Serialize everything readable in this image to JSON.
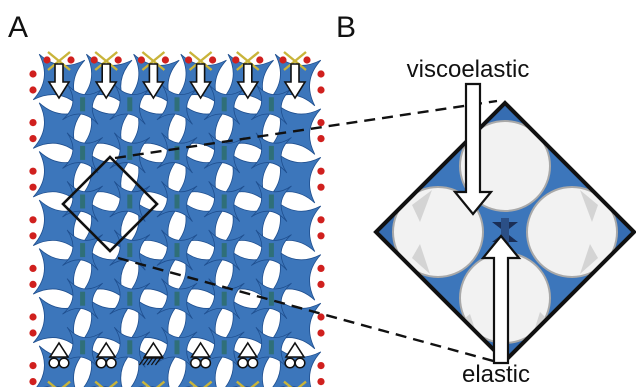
{
  "panels": {
    "a": {
      "letter": "A"
    },
    "b": {
      "letter": "B"
    }
  },
  "labels": {
    "top_arrow": "viscoelastic",
    "bottom_arrow": "elastic"
  },
  "lattice": {
    "rows": 7,
    "cols": 6
  },
  "colors": {
    "square_fill": "#3c76bb",
    "square_stroke": "#1f4f8f",
    "node_red": "#d0201e",
    "hinge_teal": "#2f6f78",
    "spring_yellow": "#c9b43a",
    "frame": "#111111",
    "background": "#ffffff"
  },
  "icons": {
    "load_arrow": "down-arrow-icon",
    "support": "roller-support-icon",
    "fixed_support": "fixed-support-icon"
  }
}
